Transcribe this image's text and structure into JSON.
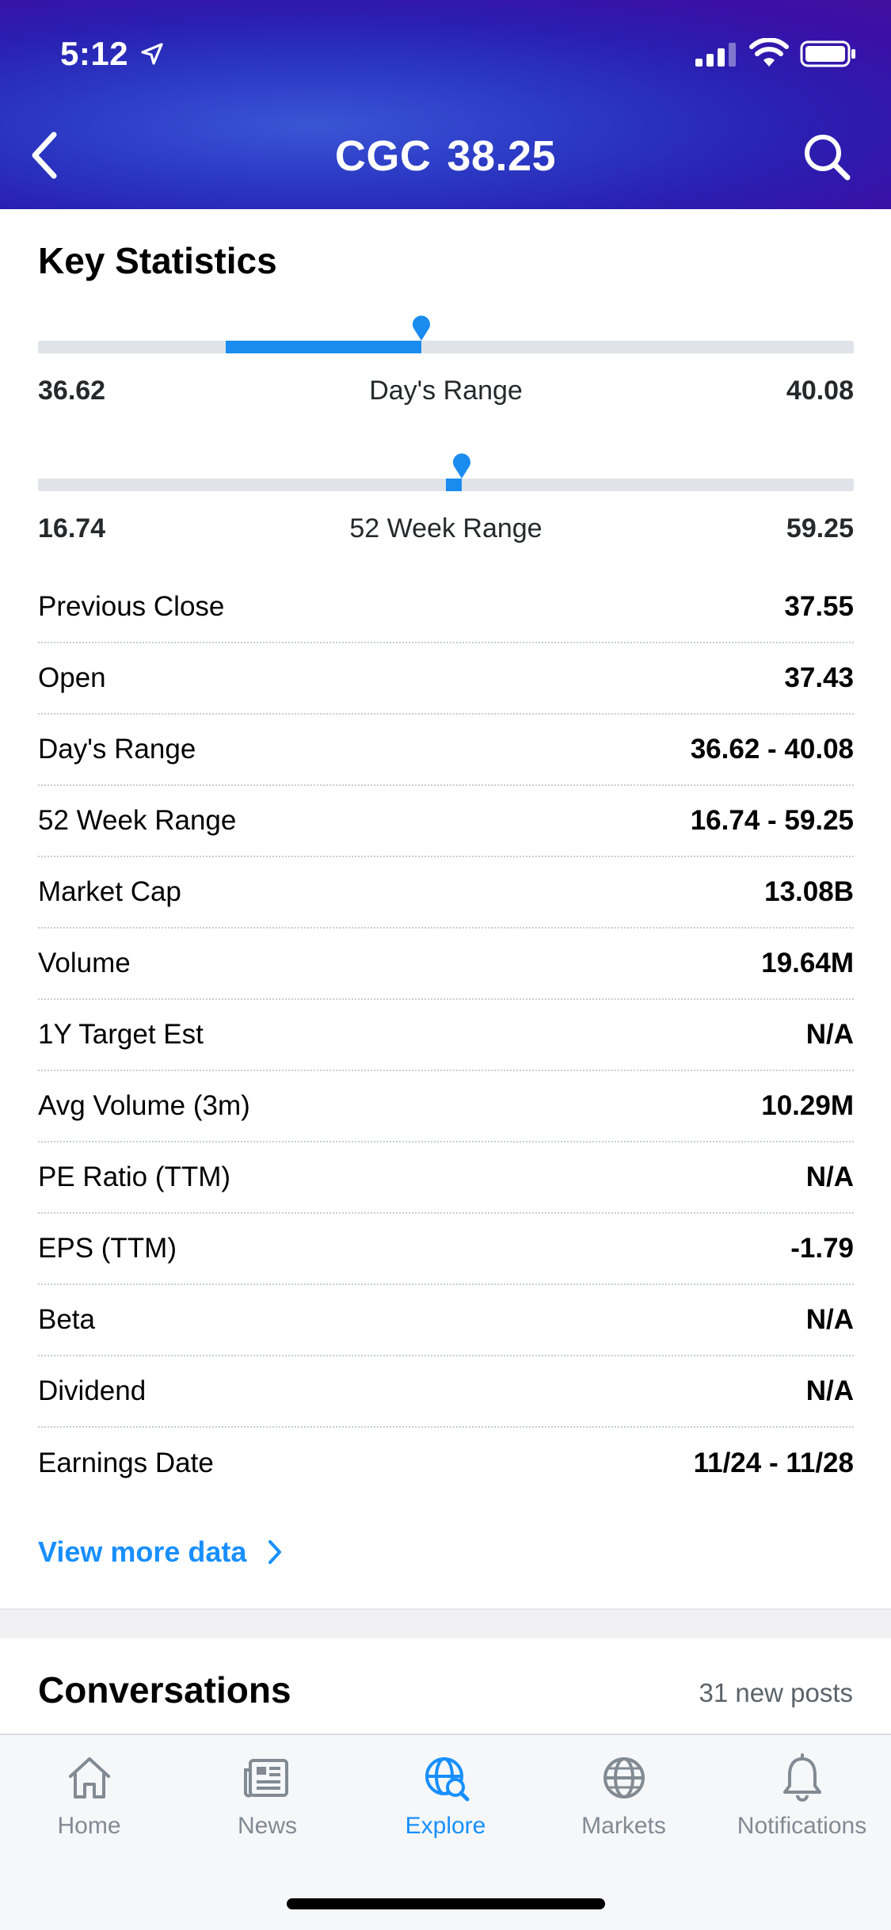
{
  "status_bar": {
    "time": "5:12"
  },
  "header": {
    "symbol": "CGC",
    "price": "38.25"
  },
  "key_statistics": {
    "title": "Key Statistics",
    "day_range_slider": {
      "low": "36.62",
      "high": "40.08",
      "label": "Day's Range",
      "current_fraction": 0.47,
      "open_fraction": 0.23
    },
    "week52_range_slider": {
      "low": "16.74",
      "high": "59.25",
      "label": "52 Week Range",
      "current_fraction": 0.51
    },
    "rows": [
      {
        "label": "Previous Close",
        "value": "37.55"
      },
      {
        "label": "Open",
        "value": "37.43"
      },
      {
        "label": "Day's Range",
        "value": "36.62 - 40.08"
      },
      {
        "label": "52 Week Range",
        "value": "16.74 - 59.25"
      },
      {
        "label": "Market Cap",
        "value": "13.08B"
      },
      {
        "label": "Volume",
        "value": "19.64M"
      },
      {
        "label": "1Y Target Est",
        "value": "N/A"
      },
      {
        "label": "Avg Volume (3m)",
        "value": "10.29M"
      },
      {
        "label": "PE Ratio (TTM)",
        "value": "N/A"
      },
      {
        "label": "EPS (TTM)",
        "value": "-1.79"
      },
      {
        "label": "Beta",
        "value": "N/A"
      },
      {
        "label": "Dividend",
        "value": "N/A"
      },
      {
        "label": "Earnings Date",
        "value": "11/24 - 11/28"
      }
    ],
    "view_more_label": "View more data"
  },
  "conversations": {
    "title": "Conversations",
    "new_posts": "31 new posts"
  },
  "tabbar": {
    "tabs": [
      {
        "label": "Home",
        "icon": "home-icon"
      },
      {
        "label": "News",
        "icon": "news-icon"
      },
      {
        "label": "Explore",
        "icon": "explore-icon",
        "active": true
      },
      {
        "label": "Markets",
        "icon": "globe-icon"
      },
      {
        "label": "Notifications",
        "icon": "bell-icon"
      }
    ]
  },
  "colors": {
    "accent": "#188FFF",
    "header_start": "#2A36C2",
    "header_end": "#43109E"
  }
}
